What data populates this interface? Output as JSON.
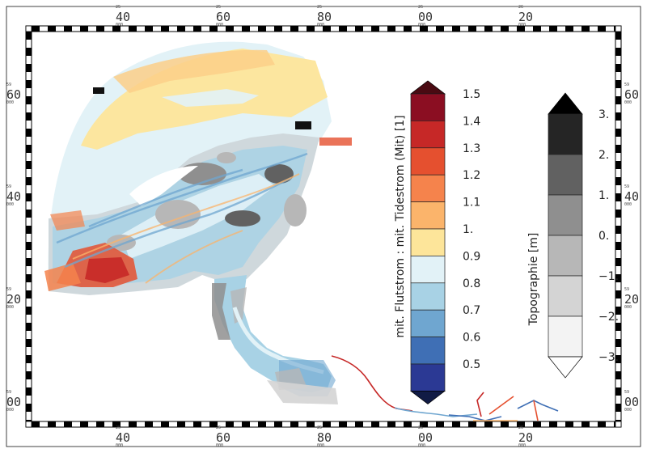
{
  "map": {
    "top_ticks": [
      {
        "minor": "25",
        "sub": "000",
        "major": "40"
      },
      {
        "minor": "25",
        "sub": "000",
        "major": "60"
      },
      {
        "minor": "25",
        "sub": "000",
        "major": "80"
      },
      {
        "minor": "26",
        "sub": "000",
        "major": "00"
      },
      {
        "minor": "26",
        "sub": "000",
        "major": "20"
      }
    ],
    "bottom_ticks": [
      {
        "minor": "25",
        "sub": "000",
        "major": "40"
      },
      {
        "minor": "25",
        "sub": "000",
        "major": "60"
      },
      {
        "minor": "25",
        "sub": "000",
        "major": "80"
      },
      {
        "minor": "26",
        "sub": "000",
        "major": "00"
      },
      {
        "minor": "26",
        "sub": "000",
        "major": "20"
      }
    ],
    "left_ticks": [
      {
        "minor": "59",
        "sub": "000",
        "major": "60"
      },
      {
        "minor": "59",
        "sub": "000",
        "major": "40"
      },
      {
        "minor": "59",
        "sub": "000",
        "major": "20"
      },
      {
        "minor": "59",
        "sub": "000",
        "major": "00"
      }
    ],
    "right_ticks": [
      {
        "minor": "59",
        "sub": "000",
        "major": "60"
      },
      {
        "minor": "59",
        "sub": "000",
        "major": "40"
      },
      {
        "minor": "59",
        "sub": "000",
        "major": "20"
      },
      {
        "minor": "59",
        "sub": "000",
        "major": "00"
      }
    ]
  },
  "colorbar_ratio": {
    "title": "mit. Flutstrom : mit. Tidestrom (Mit) [1]",
    "labels": [
      "1.5",
      "1.4",
      "1.3",
      "1.2",
      "1.1",
      "1.",
      "0.9",
      "0.8",
      "0.7",
      "0.6",
      "0.5"
    ],
    "colors": [
      "#8b0e22",
      "#c62827",
      "#e5502f",
      "#f5834c",
      "#fbb46b",
      "#fde59a",
      "#e2f2f7",
      "#a8d2e5",
      "#6fa6d0",
      "#3f6fb5",
      "#2b3994"
    ],
    "over_color": "#4a0a12",
    "under_color": "#111b45"
  },
  "colorbar_topo": {
    "title": "Topographie [m]",
    "labels": [
      "3.",
      "2.",
      "1.",
      "0.",
      "−1.",
      "−2.",
      "−3."
    ],
    "colors": [
      "#252525",
      "#616161",
      "#8f8f8f",
      "#b7b7b7",
      "#d4d4d4",
      "#f3f3f3"
    ],
    "over_color": "#000000",
    "under_color": "#ffffff"
  }
}
